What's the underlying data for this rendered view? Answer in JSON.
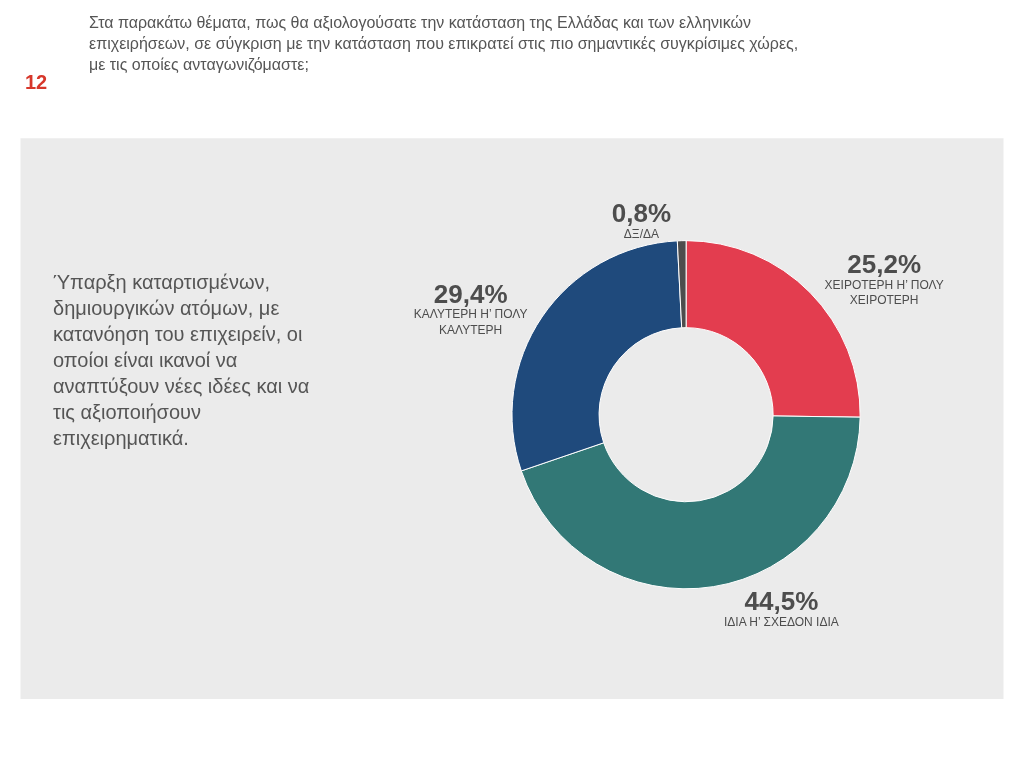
{
  "chart_data": {
    "type": "donut",
    "title": "Στα παρακάτω θέματα, πως θα αξιολογούσατε την κατάσταση της Ελλάδας και των ελληνικών επιχειρήσεων, σε σύγκριση με την κατάσταση που επικρατεί στις πιο σημαντικές συγκρίσιμες χώρες, με τις οποίες ανταγωνιζόμαστε;",
    "subtitle": "Ύπαρξη καταρτισμένων, δημιουργικών ατόμων, με κατανόηση του επιχειρείν, οι οποίοι είναι ικανοί να αναπτύξουν νέες ιδέες και να τις αξιοποιήσουν επιχειρηματικά.",
    "categories": [
      "ΧΕΙΡΟΤΕΡΗ Η’ ΠΟΛΥ ΧΕΙΡΟΤΕΡΗ",
      "ΙΔΙΑ Η’ ΣΧΕΔΟΝ ΙΔΙΑ",
      "ΚΑΛΥΤΕΡΗ Η’ ΠΟΛΥ ΚΑΛΥΤΕΡΗ",
      "ΔΞ/ΔΑ"
    ],
    "values": [
      25.2,
      44.5,
      29.4,
      0.8
    ],
    "value_labels": [
      "25,2%",
      "44,5%",
      "29,4%",
      "0,8%"
    ],
    "colors": [
      "#e33d4f",
      "#327876",
      "#1f4a7c",
      "#4d4d4d"
    ],
    "annotations": [
      "12"
    ]
  }
}
